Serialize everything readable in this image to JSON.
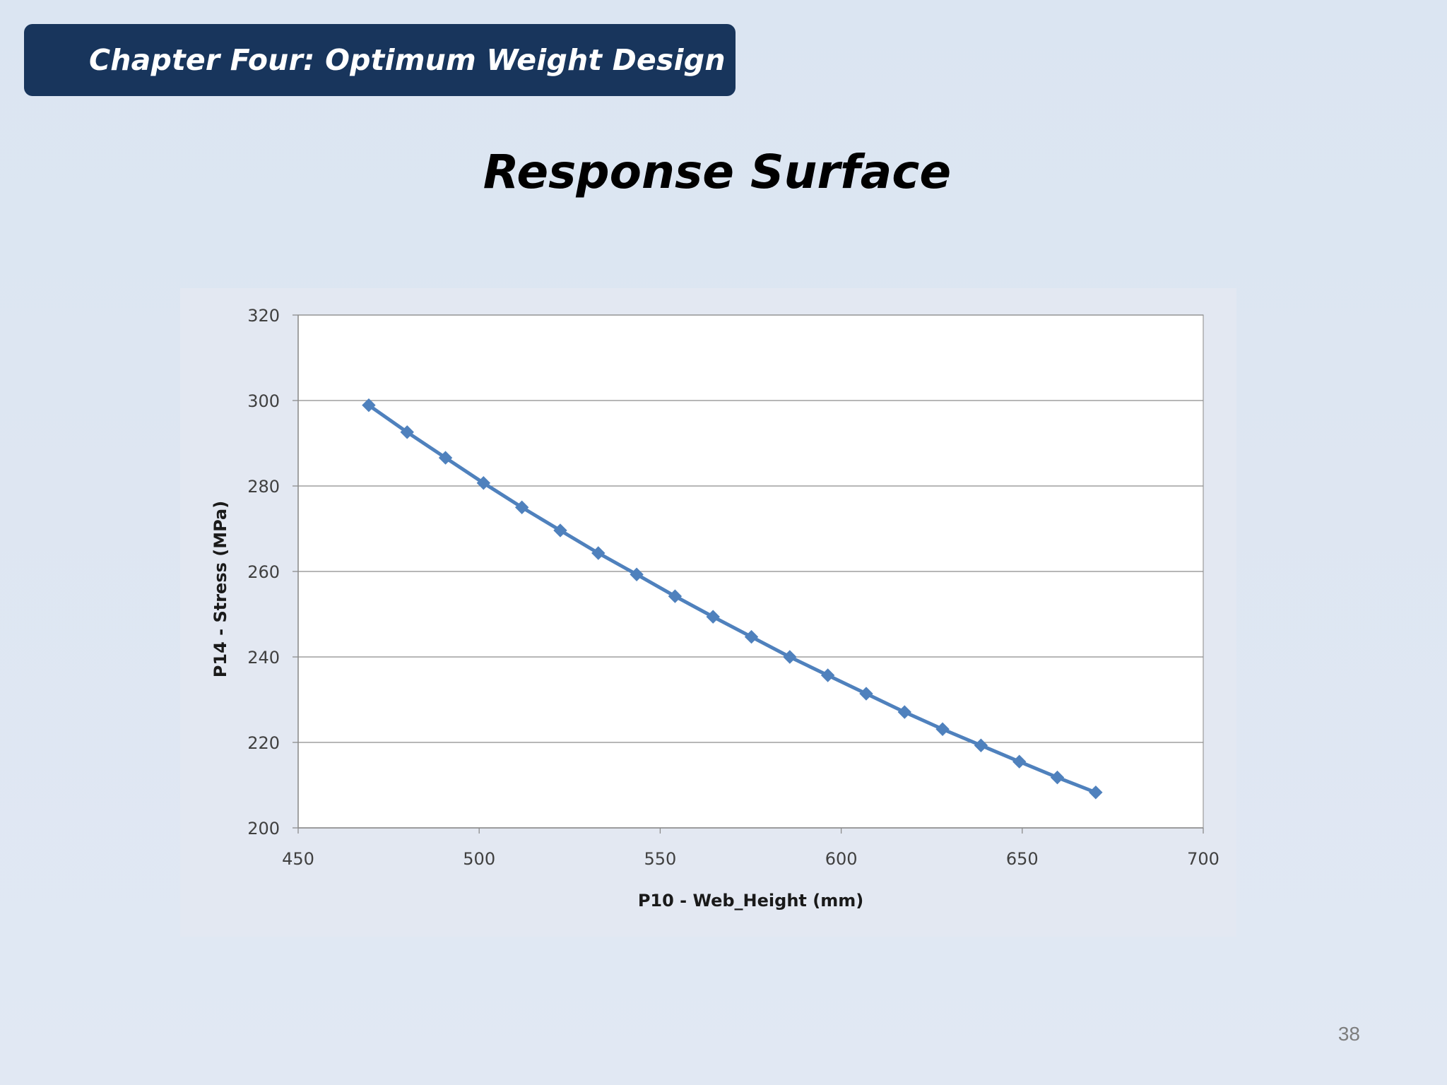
{
  "header": {
    "chapter_title": "Chapter Four: Optimum Weight Design"
  },
  "slide": {
    "title": "Response Surface",
    "page_number": "38"
  },
  "colors": {
    "banner": "#18355c",
    "series": "#4f81bd",
    "grid": "#8c8c8c",
    "plot_background": "#ffffff"
  },
  "chart_data": {
    "type": "line",
    "title": "",
    "xlabel": "P10 - Web_Height (mm)",
    "ylabel": "P14 - Stress (MPa)",
    "xlim": [
      450,
      700
    ],
    "ylim": [
      200,
      320
    ],
    "xticks": [
      450,
      500,
      550,
      600,
      650,
      700
    ],
    "yticks": [
      200,
      220,
      240,
      260,
      280,
      300,
      320
    ],
    "grid": "horizontal",
    "marker": "diamond",
    "series": [
      {
        "name": "",
        "x": [
          469.5,
          480.1,
          490.7,
          501.2,
          511.8,
          522.4,
          532.9,
          543.5,
          554.1,
          564.6,
          575.2,
          585.8,
          596.3,
          606.9,
          617.5,
          628.0,
          638.6,
          649.2,
          659.7,
          670.3
        ],
        "y": [
          298.9,
          292.6,
          286.6,
          280.7,
          275.0,
          269.6,
          264.3,
          259.3,
          254.2,
          249.4,
          244.7,
          240.0,
          235.7,
          231.4,
          227.1,
          223.1,
          219.3,
          215.5,
          211.8,
          208.3
        ]
      }
    ]
  }
}
